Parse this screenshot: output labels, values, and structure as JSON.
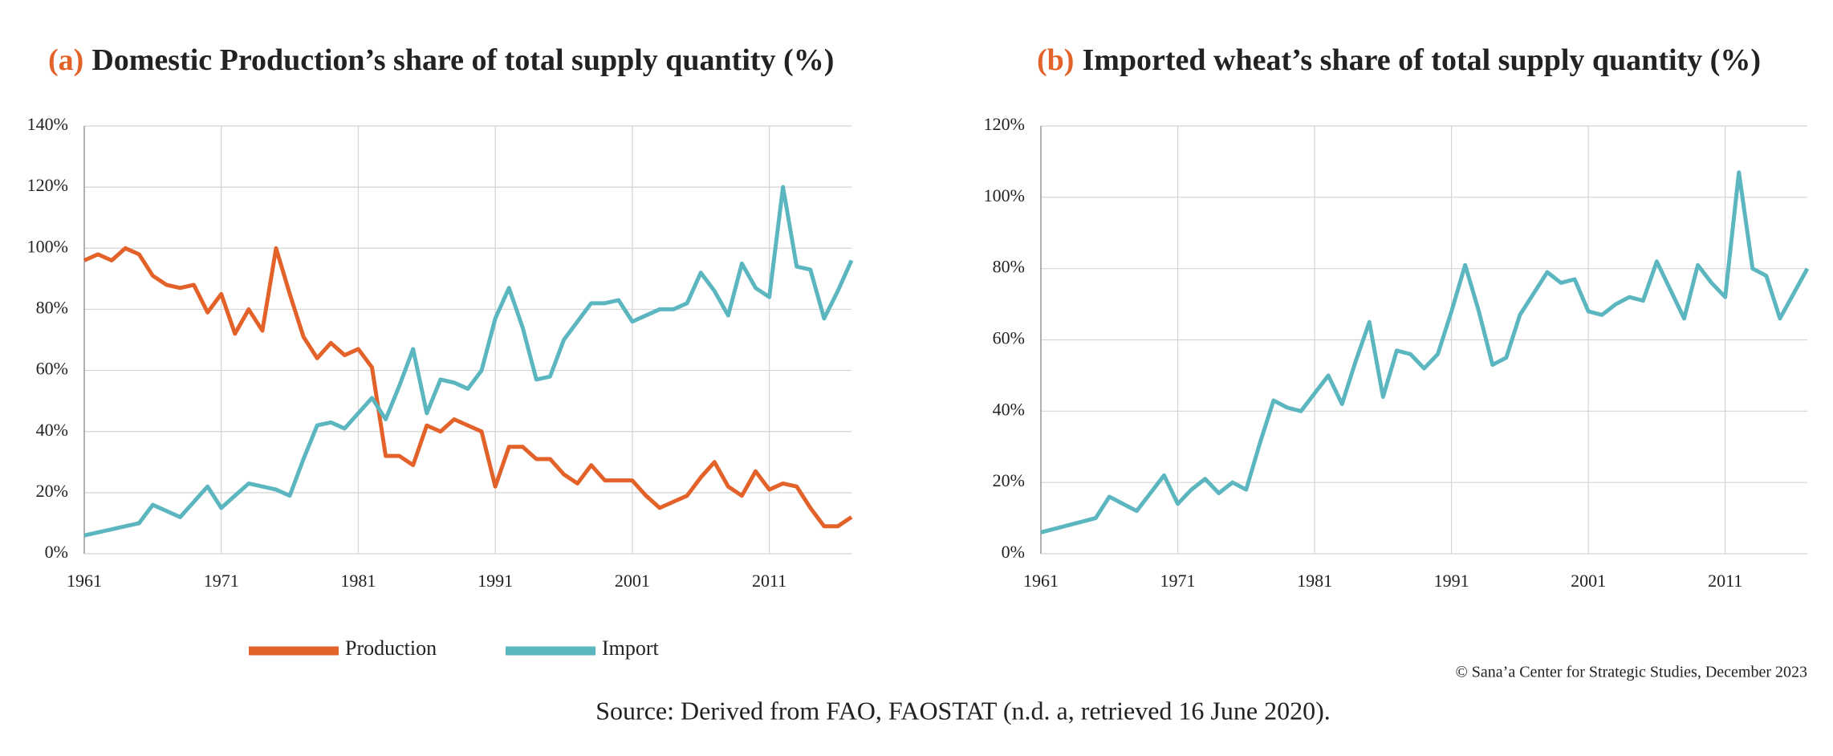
{
  "chart_data": [
    {
      "type": "line",
      "label": "(a)",
      "title": "Domestic Production’s share of total supply quantity (%)",
      "x": [
        1961,
        1962,
        1963,
        1964,
        1965,
        1966,
        1967,
        1968,
        1969,
        1970,
        1971,
        1972,
        1973,
        1974,
        1975,
        1976,
        1977,
        1978,
        1979,
        1980,
        1981,
        1982,
        1983,
        1984,
        1985,
        1986,
        1987,
        1988,
        1989,
        1990,
        1991,
        1992,
        1993,
        1994,
        1995,
        1996,
        1997,
        1998,
        1999,
        2000,
        2001,
        2002,
        2003,
        2004,
        2005,
        2006,
        2007,
        2008,
        2009,
        2010,
        2011,
        2012,
        2013,
        2014,
        2015,
        2016,
        2017
      ],
      "series": [
        {
          "name": "Production",
          "color": "#e3622a",
          "values": [
            96,
            98,
            96,
            100,
            98,
            91,
            88,
            87,
            88,
            79,
            85,
            72,
            80,
            73,
            100,
            85,
            71,
            64,
            69,
            65,
            67,
            61,
            32,
            32,
            29,
            42,
            40,
            44,
            42,
            40,
            22,
            35,
            35,
            31,
            31,
            26,
            23,
            29,
            24,
            24,
            24,
            19,
            15,
            17,
            19,
            25,
            30,
            22,
            19,
            27,
            21,
            23,
            22,
            15,
            9,
            9,
            12
          ]
        },
        {
          "name": "Import",
          "color": "#5bb6bf",
          "values": [
            6,
            7,
            8,
            9,
            10,
            16,
            14,
            12,
            17,
            22,
            15,
            19,
            23,
            22,
            21,
            19,
            31,
            42,
            43,
            41,
            46,
            51,
            44,
            55,
            67,
            46,
            57,
            56,
            54,
            60,
            77,
            87,
            74,
            57,
            58,
            70,
            76,
            82,
            82,
            83,
            76,
            78,
            80,
            80,
            82,
            92,
            86,
            78,
            95,
            87,
            84,
            120,
            94,
            93,
            77,
            86,
            96
          ]
        }
      ],
      "xlim": [
        1961,
        2017
      ],
      "xticks": [
        1961,
        1971,
        1981,
        1991,
        2001,
        2011
      ],
      "ylim": [
        0,
        140
      ],
      "yticks": [
        {
          "value": 0,
          "label": "0%"
        },
        {
          "value": 20,
          "label": "20%"
        },
        {
          "value": 40,
          "label": "40%"
        },
        {
          "value": 60,
          "label": "60%"
        },
        {
          "value": 80,
          "label": "80%"
        },
        {
          "value": 100,
          "label": "100%"
        },
        {
          "value": 120,
          "label": "120%"
        },
        {
          "value": 140,
          "label": "140%"
        }
      ],
      "grid": true,
      "legend": "bottom"
    },
    {
      "type": "line",
      "label": "(b)",
      "title": "Imported wheat’s share of total supply quantity (%)",
      "x": [
        1961,
        1962,
        1963,
        1964,
        1965,
        1966,
        1967,
        1968,
        1969,
        1970,
        1971,
        1972,
        1973,
        1974,
        1975,
        1976,
        1977,
        1978,
        1979,
        1980,
        1981,
        1982,
        1983,
        1984,
        1985,
        1986,
        1987,
        1988,
        1989,
        1990,
        1991,
        1992,
        1993,
        1994,
        1995,
        1996,
        1997,
        1998,
        1999,
        2000,
        2001,
        2002,
        2003,
        2004,
        2005,
        2006,
        2007,
        2008,
        2009,
        2010,
        2011,
        2012,
        2013,
        2014,
        2015,
        2016,
        2017
      ],
      "series": [
        {
          "color": "#5bb6bf",
          "values": [
            6,
            7,
            8,
            9,
            10,
            16,
            14,
            12,
            17,
            22,
            14,
            18,
            21,
            17,
            20,
            18,
            31,
            43,
            41,
            40,
            45,
            50,
            42,
            54,
            65,
            44,
            57,
            56,
            52,
            56,
            68,
            81,
            68,
            53,
            55,
            67,
            73,
            79,
            76,
            77,
            68,
            67,
            70,
            72,
            71,
            82,
            74,
            66,
            81,
            76,
            72,
            107,
            80,
            78,
            66,
            73,
            80
          ]
        }
      ],
      "xlim": [
        1961,
        2017
      ],
      "xticks": [
        1961,
        1971,
        1981,
        1991,
        2001,
        2011
      ],
      "ylim": [
        0,
        120
      ],
      "yticks": [
        {
          "value": 0,
          "label": "0%"
        },
        {
          "value": 20,
          "label": "20%"
        },
        {
          "value": 40,
          "label": "40%"
        },
        {
          "value": 60,
          "label": "60%"
        },
        {
          "value": 80,
          "label": "80%"
        },
        {
          "value": 100,
          "label": "100%"
        },
        {
          "value": 120,
          "label": "120%"
        }
      ],
      "grid": true
    }
  ],
  "credit": "© Sana’a Center for Strategic Studies, December 2023",
  "source": "Source: Derived from FAO, FAOSTAT (n.d. a, retrieved 16 June 2020)."
}
